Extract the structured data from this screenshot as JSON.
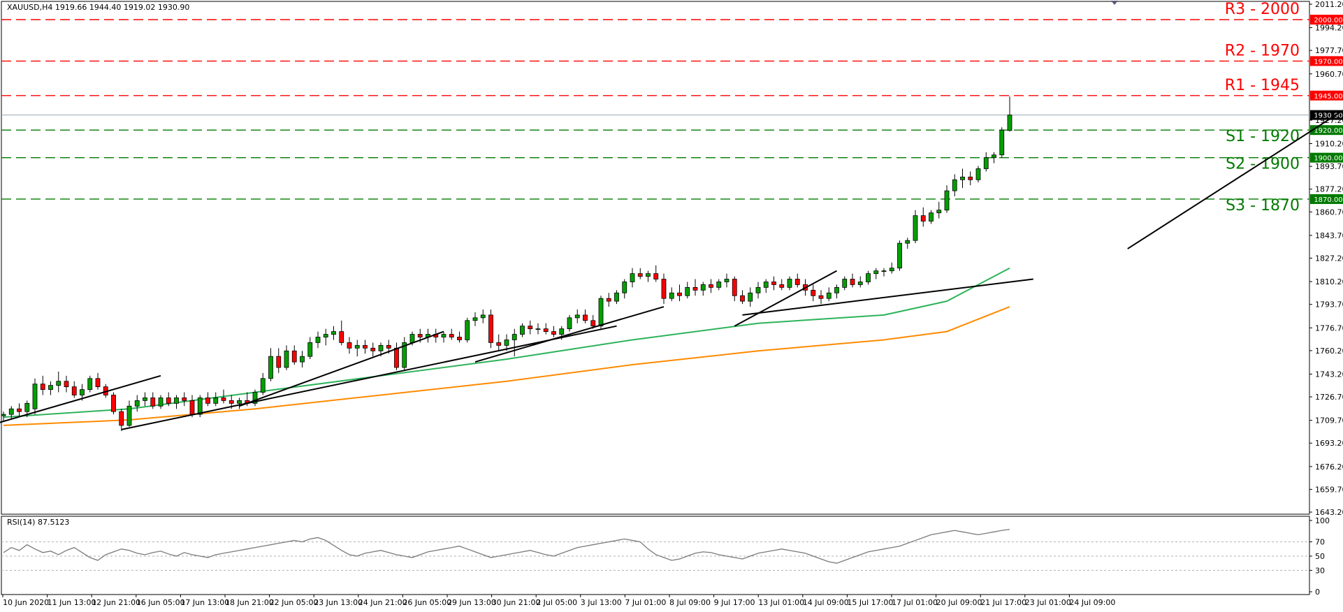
{
  "header": {
    "title": "XAUUSD,H4  1919.66 1944.40 1919.02 1930.90"
  },
  "rsi_title": "RSI(14) 87.5123",
  "colors": {
    "resistance": "#ff0000",
    "support": "#007a00",
    "bull": "#00a000",
    "bear": "#ff0000",
    "ma_fast": "#2db35a",
    "ma_slow": "#ff8a00",
    "trend": "#000000",
    "rsi": "#7a7a7a",
    "last_price_line": "#9aa6b3"
  },
  "chart_data": {
    "type": "candlestick",
    "symbol": "XAUUSD",
    "timeframe": "H4",
    "ohlc_header": {
      "open": 1919.66,
      "high": 1944.4,
      "low": 1919.02,
      "close": 1930.9
    },
    "last_price": 1930.9,
    "last_price_label": "1930.90",
    "ylim": [
      1643.2,
      2011.2
    ],
    "y_ticks": [
      {
        "value": 2011.2,
        "label": "2011.20"
      },
      {
        "value": 1994.2,
        "label": "1994.20"
      },
      {
        "value": 1977.7,
        "label": "1977.70"
      },
      {
        "value": 1960.7,
        "label": "1960.70"
      },
      {
        "value": 1927.2,
        "label": "1927.20"
      },
      {
        "value": 1910.2,
        "label": "1910.20"
      },
      {
        "value": 1893.7,
        "label": "1893.70"
      },
      {
        "value": 1877.2,
        "label": "1877.20"
      },
      {
        "value": 1860.7,
        "label": "1860.70"
      },
      {
        "value": 1843.7,
        "label": "1843.70"
      },
      {
        "value": 1827.2,
        "label": "1827.20"
      },
      {
        "value": 1810.2,
        "label": "1810.20"
      },
      {
        "value": 1793.7,
        "label": "1793.70"
      },
      {
        "value": 1776.7,
        "label": "1776.70"
      },
      {
        "value": 1760.2,
        "label": "1760.20"
      },
      {
        "value": 1743.2,
        "label": "1743.20"
      },
      {
        "value": 1726.7,
        "label": "1726.70"
      },
      {
        "value": 1709.7,
        "label": "1709.70"
      },
      {
        "value": 1693.2,
        "label": "1693.20"
      },
      {
        "value": 1676.2,
        "label": "1676.20"
      },
      {
        "value": 1659.7,
        "label": "1659.70"
      },
      {
        "value": 1643.2,
        "label": "1643.20"
      }
    ],
    "x_labels": [
      "10 Jun 2020",
      "11 Jun 13:00",
      "12 Jun 21:00",
      "16 Jun 05:00",
      "17 Jun 13:00",
      "18 Jun 21:00",
      "22 Jun 05:00",
      "23 Jun 13:00",
      "24 Jun 21:00",
      "26 Jun 05:00",
      "29 Jun 13:00",
      "30 Jun 21:00",
      "2 Jul 05:00",
      "3 Jul 13:00",
      "7 Jul 01:00",
      "8 Jul 09:00",
      "9 Jul 17:00",
      "13 Jul 01:00",
      "14 Jul 09:00",
      "15 Jul 17:00",
      "17 Jul 01:00",
      "20 Jul 09:00",
      "21 Jul 17:00",
      "23 Jul 01:00",
      "24 Jul 09:00"
    ],
    "levels": [
      {
        "name": "R3 - 2000",
        "value": 2000.0,
        "label": "2000.00",
        "kind": "resistance"
      },
      {
        "name": "R2 - 1970",
        "value": 1970.0,
        "label": "1970.00",
        "kind": "resistance"
      },
      {
        "name": "R1 - 1945",
        "value": 1945.0,
        "label": "1945.00",
        "kind": "resistance"
      },
      {
        "name": "S1 - 1920",
        "value": 1920.0,
        "label": "1920.00",
        "kind": "support"
      },
      {
        "name": "S2 - 1900",
        "value": 1900.0,
        "label": "1900.00",
        "kind": "support"
      },
      {
        "name": "S3 - 1870",
        "value": 1870.0,
        "label": "1870.00",
        "kind": "support"
      }
    ],
    "candles": [
      [
        0,
        1713,
        1716,
        1709,
        1714
      ],
      [
        1,
        1714,
        1720,
        1711,
        1718
      ],
      [
        2,
        1718,
        1722,
        1713,
        1716
      ],
      [
        3,
        1716,
        1724,
        1712,
        1722
      ],
      [
        4,
        1718,
        1740,
        1714,
        1736
      ],
      [
        5,
        1736,
        1742,
        1728,
        1732
      ],
      [
        6,
        1732,
        1738,
        1728,
        1735
      ],
      [
        7,
        1735,
        1745,
        1730,
        1738
      ],
      [
        8,
        1738,
        1742,
        1730,
        1734
      ],
      [
        9,
        1734,
        1738,
        1726,
        1728
      ],
      [
        10,
        1728,
        1736,
        1724,
        1732
      ],
      [
        11,
        1732,
        1742,
        1730,
        1740
      ],
      [
        12,
        1740,
        1744,
        1732,
        1734
      ],
      [
        13,
        1734,
        1736,
        1726,
        1728
      ],
      [
        14,
        1728,
        1730,
        1714,
        1716
      ],
      [
        15,
        1716,
        1718,
        1702,
        1706
      ],
      [
        16,
        1706,
        1724,
        1705,
        1720
      ],
      [
        17,
        1720,
        1728,
        1716,
        1724
      ],
      [
        18,
        1724,
        1730,
        1720,
        1726
      ],
      [
        19,
        1726,
        1730,
        1718,
        1720
      ],
      [
        20,
        1720,
        1728,
        1718,
        1726
      ],
      [
        21,
        1726,
        1730,
        1720,
        1722
      ],
      [
        22,
        1722,
        1728,
        1718,
        1726
      ],
      [
        23,
        1726,
        1730,
        1720,
        1724
      ],
      [
        24,
        1724,
        1728,
        1712,
        1714
      ],
      [
        25,
        1714,
        1728,
        1712,
        1726
      ],
      [
        26,
        1726,
        1730,
        1720,
        1722
      ],
      [
        27,
        1722,
        1730,
        1720,
        1726
      ],
      [
        28,
        1726,
        1732,
        1722,
        1724
      ],
      [
        29,
        1724,
        1728,
        1718,
        1722
      ],
      [
        30,
        1722,
        1726,
        1718,
        1724
      ],
      [
        31,
        1724,
        1730,
        1720,
        1722
      ],
      [
        32,
        1722,
        1732,
        1720,
        1730
      ],
      [
        33,
        1730,
        1744,
        1728,
        1740
      ],
      [
        34,
        1740,
        1762,
        1738,
        1756
      ],
      [
        35,
        1756,
        1762,
        1744,
        1748
      ],
      [
        36,
        1748,
        1764,
        1746,
        1760
      ],
      [
        37,
        1760,
        1764,
        1750,
        1752
      ],
      [
        38,
        1752,
        1760,
        1748,
        1756
      ],
      [
        39,
        1756,
        1770,
        1754,
        1766
      ],
      [
        40,
        1766,
        1774,
        1762,
        1770
      ],
      [
        41,
        1770,
        1776,
        1764,
        1772
      ],
      [
        42,
        1772,
        1778,
        1768,
        1774
      ],
      [
        43,
        1774,
        1782,
        1764,
        1766
      ],
      [
        44,
        1766,
        1770,
        1758,
        1762
      ],
      [
        45,
        1762,
        1768,
        1756,
        1764
      ],
      [
        46,
        1764,
        1768,
        1758,
        1762
      ],
      [
        47,
        1762,
        1766,
        1756,
        1760
      ],
      [
        48,
        1760,
        1766,
        1756,
        1764
      ],
      [
        49,
        1764,
        1768,
        1758,
        1762
      ],
      [
        50,
        1762,
        1766,
        1746,
        1748
      ],
      [
        51,
        1748,
        1770,
        1746,
        1766
      ],
      [
        52,
        1766,
        1774,
        1764,
        1772
      ],
      [
        53,
        1772,
        1776,
        1766,
        1770
      ],
      [
        54,
        1770,
        1776,
        1766,
        1772
      ],
      [
        55,
        1772,
        1776,
        1766,
        1770
      ],
      [
        56,
        1770,
        1774,
        1766,
        1772
      ],
      [
        57,
        1772,
        1776,
        1768,
        1770
      ],
      [
        58,
        1770,
        1774,
        1766,
        1768
      ],
      [
        59,
        1768,
        1784,
        1766,
        1782
      ],
      [
        60,
        1782,
        1788,
        1778,
        1784
      ],
      [
        61,
        1784,
        1790,
        1780,
        1786
      ],
      [
        62,
        1786,
        1790,
        1762,
        1766
      ],
      [
        63,
        1766,
        1772,
        1760,
        1764
      ],
      [
        64,
        1764,
        1772,
        1760,
        1768
      ],
      [
        65,
        1768,
        1776,
        1756,
        1772
      ],
      [
        66,
        1772,
        1780,
        1770,
        1778
      ],
      [
        67,
        1778,
        1782,
        1772,
        1776
      ],
      [
        68,
        1776,
        1780,
        1772,
        1776
      ],
      [
        69,
        1776,
        1780,
        1772,
        1774
      ],
      [
        70,
        1774,
        1778,
        1770,
        1772
      ],
      [
        71,
        1772,
        1778,
        1768,
        1776
      ],
      [
        72,
        1776,
        1786,
        1774,
        1784
      ],
      [
        73,
        1784,
        1790,
        1780,
        1786
      ],
      [
        74,
        1786,
        1790,
        1780,
        1782
      ],
      [
        75,
        1782,
        1786,
        1776,
        1778
      ],
      [
        76,
        1778,
        1800,
        1776,
        1798
      ],
      [
        77,
        1798,
        1802,
        1792,
        1796
      ],
      [
        78,
        1796,
        1804,
        1794,
        1802
      ],
      [
        79,
        1802,
        1812,
        1798,
        1810
      ],
      [
        80,
        1810,
        1820,
        1806,
        1816
      ],
      [
        81,
        1816,
        1820,
        1812,
        1814
      ],
      [
        82,
        1814,
        1818,
        1810,
        1816
      ],
      [
        83,
        1816,
        1822,
        1810,
        1812
      ],
      [
        84,
        1812,
        1816,
        1794,
        1798
      ],
      [
        85,
        1798,
        1806,
        1796,
        1802
      ],
      [
        86,
        1802,
        1808,
        1796,
        1800
      ],
      [
        87,
        1800,
        1810,
        1798,
        1806
      ],
      [
        88,
        1806,
        1812,
        1800,
        1804
      ],
      [
        89,
        1804,
        1810,
        1800,
        1808
      ],
      [
        90,
        1808,
        1812,
        1802,
        1806
      ],
      [
        91,
        1806,
        1812,
        1804,
        1810
      ],
      [
        92,
        1810,
        1816,
        1806,
        1812
      ],
      [
        93,
        1812,
        1814,
        1796,
        1800
      ],
      [
        94,
        1800,
        1804,
        1794,
        1796
      ],
      [
        95,
        1796,
        1806,
        1792,
        1802
      ],
      [
        96,
        1802,
        1810,
        1798,
        1806
      ],
      [
        97,
        1806,
        1812,
        1802,
        1810
      ],
      [
        98,
        1810,
        1814,
        1804,
        1808
      ],
      [
        99,
        1808,
        1812,
        1804,
        1806
      ],
      [
        100,
        1806,
        1814,
        1804,
        1812
      ],
      [
        101,
        1812,
        1816,
        1806,
        1808
      ],
      [
        102,
        1808,
        1812,
        1800,
        1804
      ],
      [
        103,
        1804,
        1808,
        1796,
        1800
      ],
      [
        104,
        1800,
        1804,
        1794,
        1798
      ],
      [
        105,
        1798,
        1806,
        1796,
        1802
      ],
      [
        106,
        1802,
        1808,
        1798,
        1806
      ],
      [
        107,
        1806,
        1814,
        1804,
        1812
      ],
      [
        108,
        1812,
        1816,
        1806,
        1808
      ],
      [
        109,
        1808,
        1814,
        1806,
        1810
      ],
      [
        110,
        1810,
        1818,
        1808,
        1816
      ],
      [
        111,
        1816,
        1820,
        1812,
        1818
      ],
      [
        112,
        1818,
        1820,
        1814,
        1818
      ],
      [
        113,
        1818,
        1824,
        1816,
        1820
      ],
      [
        114,
        1820,
        1840,
        1818,
        1838
      ],
      [
        115,
        1838,
        1842,
        1834,
        1840
      ],
      [
        116,
        1840,
        1862,
        1838,
        1858
      ],
      [
        117,
        1858,
        1864,
        1850,
        1854
      ],
      [
        118,
        1854,
        1862,
        1852,
        1860
      ],
      [
        119,
        1860,
        1868,
        1856,
        1862
      ],
      [
        120,
        1862,
        1880,
        1860,
        1876
      ],
      [
        121,
        1876,
        1888,
        1872,
        1884
      ],
      [
        122,
        1884,
        1892,
        1878,
        1886
      ],
      [
        123,
        1886,
        1890,
        1880,
        1884
      ],
      [
        124,
        1884,
        1894,
        1882,
        1892
      ],
      [
        125,
        1892,
        1904,
        1890,
        1900
      ],
      [
        126,
        1900,
        1904,
        1896,
        1902
      ],
      [
        127,
        1902,
        1922,
        1900,
        1920
      ],
      [
        128,
        1919.66,
        1944.4,
        1919.02,
        1930.9
      ]
    ],
    "ma_fast": [
      [
        0,
        1712
      ],
      [
        16,
        1718
      ],
      [
        32,
        1730
      ],
      [
        48,
        1742
      ],
      [
        64,
        1754
      ],
      [
        80,
        1768
      ],
      [
        96,
        1780
      ],
      [
        112,
        1786
      ],
      [
        120,
        1796
      ],
      [
        128,
        1820
      ]
    ],
    "ma_slow": [
      [
        0,
        1706
      ],
      [
        16,
        1710
      ],
      [
        32,
        1718
      ],
      [
        48,
        1728
      ],
      [
        64,
        1738
      ],
      [
        80,
        1750
      ],
      [
        96,
        1760
      ],
      [
        112,
        1768
      ],
      [
        120,
        1774
      ],
      [
        128,
        1792
      ]
    ],
    "trendlines": [
      [
        [
          -3,
          1704
        ],
        [
          20,
          1742
        ]
      ],
      [
        [
          15,
          1703
        ],
        [
          78,
          1778
        ]
      ],
      [
        [
          30,
          1720
        ],
        [
          56,
          1774
        ]
      ],
      [
        [
          60,
          1752
        ],
        [
          84,
          1792
        ]
      ],
      [
        [
          93,
          1778
        ],
        [
          106,
          1818
        ]
      ],
      [
        [
          94,
          1786
        ],
        [
          131,
          1812
        ]
      ],
      [
        [
          143,
          1834
        ],
        [
          172,
          1940
        ]
      ]
    ],
    "rsi": {
      "period": 14,
      "value": 87.5123,
      "ylim": [
        0,
        100
      ],
      "ticks": [
        100,
        70,
        50,
        30,
        0
      ],
      "values": [
        55,
        62,
        58,
        66,
        60,
        55,
        57,
        52,
        58,
        62,
        55,
        48,
        44,
        52,
        56,
        60,
        58,
        54,
        52,
        55,
        57,
        53,
        50,
        55,
        52,
        50,
        48,
        52,
        54,
        56,
        58,
        60,
        62,
        64,
        66,
        68,
        70,
        72,
        70,
        74,
        76,
        72,
        65,
        58,
        52,
        50,
        54,
        56,
        58,
        55,
        52,
        50,
        48,
        52,
        56,
        58,
        60,
        62,
        64,
        60,
        56,
        52,
        48,
        50,
        52,
        54,
        56,
        58,
        55,
        52,
        50,
        54,
        58,
        62,
        64,
        66,
        68,
        70,
        72,
        74,
        72,
        70,
        60,
        52,
        48,
        44,
        46,
        50,
        54,
        56,
        55,
        52,
        50,
        48,
        46,
        50,
        54,
        56,
        58,
        60,
        58,
        56,
        54,
        50,
        46,
        42,
        40,
        44,
        48,
        52,
        56,
        58,
        60,
        62,
        64,
        68,
        72,
        76,
        80,
        82,
        84,
        86,
        84,
        82,
        80,
        82,
        84,
        86,
        87.5
      ]
    }
  }
}
